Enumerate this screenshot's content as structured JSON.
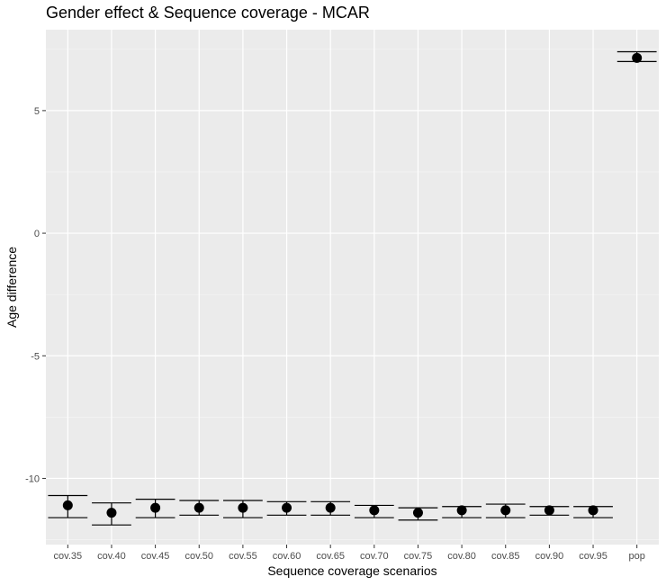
{
  "chart_data": {
    "type": "scatter",
    "title": "Gender effect & Sequence coverage - MCAR",
    "xlabel": "Sequence coverage scenarios",
    "ylabel": "Age difference",
    "categories": [
      "cov.35",
      "cov.40",
      "cov.45",
      "cov.50",
      "cov.55",
      "cov.60",
      "cov.65",
      "cov.70",
      "cov.75",
      "cov.80",
      "cov.85",
      "cov.90",
      "cov.95",
      "pop"
    ],
    "series": [
      {
        "values": [
          -11.1,
          -11.4,
          -11.2,
          -11.2,
          -11.2,
          -11.2,
          -11.2,
          -11.3,
          -11.4,
          -11.3,
          -11.3,
          -11.3,
          -11.3,
          7.15
        ],
        "lower": [
          -11.6,
          -11.9,
          -11.6,
          -11.5,
          -11.6,
          -11.5,
          -11.5,
          -11.6,
          -11.7,
          -11.6,
          -11.6,
          -11.5,
          -11.6,
          7.0
        ],
        "upper": [
          -10.7,
          -11.0,
          -10.85,
          -10.9,
          -10.9,
          -10.95,
          -10.95,
          -11.1,
          -11.2,
          -11.15,
          -11.05,
          -11.15,
          -11.15,
          7.4
        ]
      }
    ],
    "yticks": [
      5,
      0,
      -5,
      -10
    ],
    "ylim": [
      -12.7,
      8.3
    ],
    "grid": true,
    "legend": "none",
    "colors": {
      "panel": "#ebebeb",
      "grid_major": "#ffffff",
      "point": "#000000",
      "errorbar": "#000000",
      "tick_text": "#4d4d4d"
    }
  }
}
